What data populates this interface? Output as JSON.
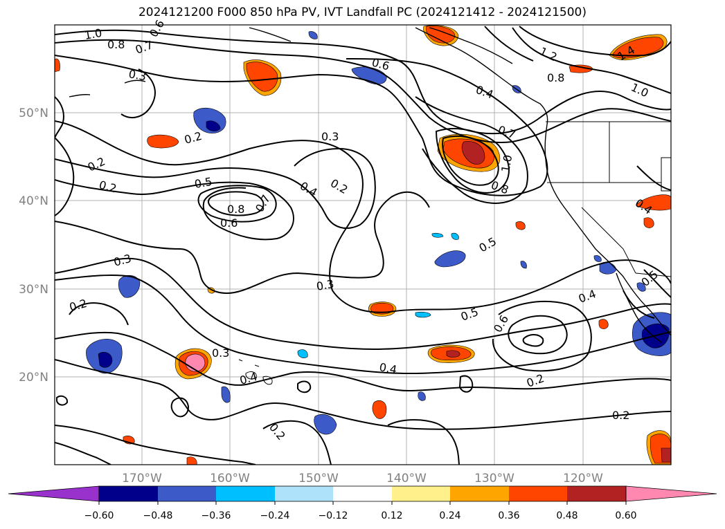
{
  "title": "2024121200 F000 850 hPa PV, IVT Landfall PC (2024121412 - 2024121500)",
  "map": {
    "lon_labels": [
      "170°W",
      "160°W",
      "150°W",
      "140°W",
      "130°W",
      "120°W"
    ],
    "lat_labels": [
      "50°N",
      "40°N",
      "30°N",
      "20°N"
    ],
    "label_color": "#808080",
    "gridlines": true
  },
  "pv_contour_labels": [
    "1.0",
    "0.8",
    "0.7",
    "0.6",
    "0.3",
    "0.6",
    "0.4",
    "1.2",
    "0.8",
    "1.0",
    "1.4",
    "0.2",
    "0.3",
    "0.7",
    "1.0",
    "0.8",
    "0.2",
    "0.2",
    "0.5",
    "0.8",
    "0.7",
    "0.6",
    "0.4",
    "0.2",
    "0.4",
    "0.3",
    "0.3",
    "0.5",
    "0.2",
    "0.3",
    "0.4",
    "0.5",
    "0.6",
    "0.4",
    "0.5",
    "0.2",
    "0.2",
    "0.4",
    "0.2"
  ],
  "colorbar": {
    "ticks": [
      "−0.60",
      "−0.48",
      "−0.36",
      "−0.24",
      "−0.12",
      "0.12",
      "0.24",
      "0.36",
      "0.48",
      "0.60"
    ],
    "colors": [
      "#9932cc",
      "#00008b",
      "#3c5ac8",
      "#00bfff",
      "#ade2fa",
      "#ffffff",
      "#fff08c",
      "#ffa500",
      "#ff4500",
      "#b22222",
      "#ff88b0"
    ],
    "extend": "both"
  }
}
